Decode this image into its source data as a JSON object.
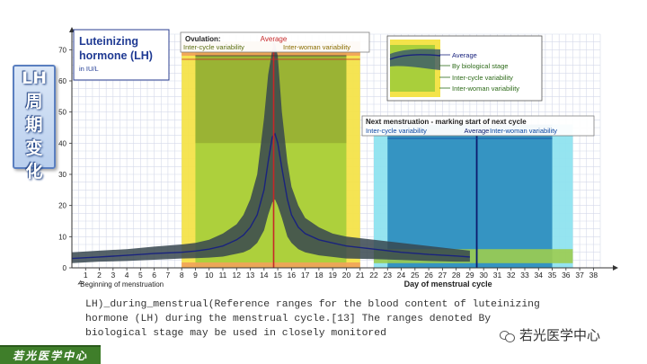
{
  "side_title": [
    "LH",
    "周",
    "期",
    "变",
    "化"
  ],
  "chart_data": {
    "type": "area",
    "title": "Luteinizing hormone (LH)",
    "subtitle": "in IU/L",
    "xlabel": "Day of menstrual cycle",
    "x_start_label": "Beginning of menstruation",
    "x_ticks": [
      1,
      2,
      3,
      4,
      5,
      6,
      7,
      8,
      9,
      10,
      11,
      12,
      13,
      14,
      15,
      16,
      17,
      18,
      19,
      20,
      21,
      22,
      23,
      24,
      25,
      26,
      27,
      28,
      29,
      30,
      31,
      32,
      33,
      34,
      35,
      36,
      37,
      38
    ],
    "xlim": [
      0,
      38.5
    ],
    "y_ticks": [
      0,
      10,
      20,
      30,
      40,
      50,
      60,
      70
    ],
    "ylim": [
      0,
      75
    ],
    "grid": true,
    "x": [
      0,
      2,
      4,
      6,
      8,
      9,
      10,
      11,
      12,
      12.5,
      13,
      13.5,
      14,
      14.3,
      14.6,
      14.8,
      15,
      15.3,
      15.7,
      16,
      16.5,
      17,
      18,
      19,
      20,
      22,
      24,
      26,
      28,
      29
    ],
    "series": [
      {
        "name": "Average",
        "color": "#1a237e",
        "values": [
          3,
          3.5,
          4,
          4.6,
          5,
          5.4,
          6,
          7,
          9,
          10.5,
          13,
          17,
          25,
          34,
          42,
          43,
          40,
          32,
          22,
          17,
          13,
          11,
          9,
          8,
          7,
          6,
          5,
          4.3,
          3.8,
          3.5
        ]
      },
      {
        "name": "By biological stage",
        "color": "#37474f",
        "low": [
          1.5,
          2,
          2.2,
          2.6,
          3,
          3.1,
          3.3,
          3.6,
          4.5,
          5,
          6,
          8,
          12,
          17,
          21,
          22,
          20,
          16,
          10,
          8,
          6,
          5,
          4,
          3.5,
          3,
          2.8,
          2.5,
          2.2,
          2,
          2
        ],
        "high": [
          5,
          5.5,
          6,
          6.8,
          7.5,
          8,
          9,
          11,
          14,
          17,
          22,
          30,
          48,
          62,
          70,
          72,
          68,
          50,
          34,
          26,
          20,
          16,
          13,
          11,
          10,
          9,
          8,
          7,
          6,
          5.5
        ]
      }
    ],
    "bands": [
      {
        "name": "Ovulation",
        "label_average": "Average",
        "labels": [
          "Inter-cycle variability",
          "Inter-woman variability"
        ],
        "average_day": 14.7,
        "inter_cycle": [
          9,
          20
        ],
        "inter_woman": [
          8,
          21
        ],
        "colors": {
          "outer": "#f4e34a",
          "inner": "#a9cf3b",
          "top": "#f2a25a"
        }
      },
      {
        "name": "Next menstruation - marking start of next cycle",
        "label_average": "Average",
        "labels": [
          "Inter-cycle variability",
          "Inter-woman variability"
        ],
        "average_day": 29.5,
        "inter_cycle": [
          23,
          35
        ],
        "inter_woman": [
          22,
          36.5
        ],
        "colors": {
          "outer": "#8fe3ef",
          "inner": "#2f8fbf"
        }
      }
    ],
    "legend": {
      "placement": "top-right",
      "items": [
        "Average",
        "By biological stage",
        "Inter-cycle variability",
        "Inter-woman variability"
      ]
    }
  },
  "caption": "LH)_during_menstrual(Reference ranges for the blood content of luteinizing hormone (LH) during the menstrual cycle.[13] The ranges denoted By biological stage may be used in closely monitored",
  "brand_label": "若光医学中心",
  "watermark_text": "若光医学中心"
}
